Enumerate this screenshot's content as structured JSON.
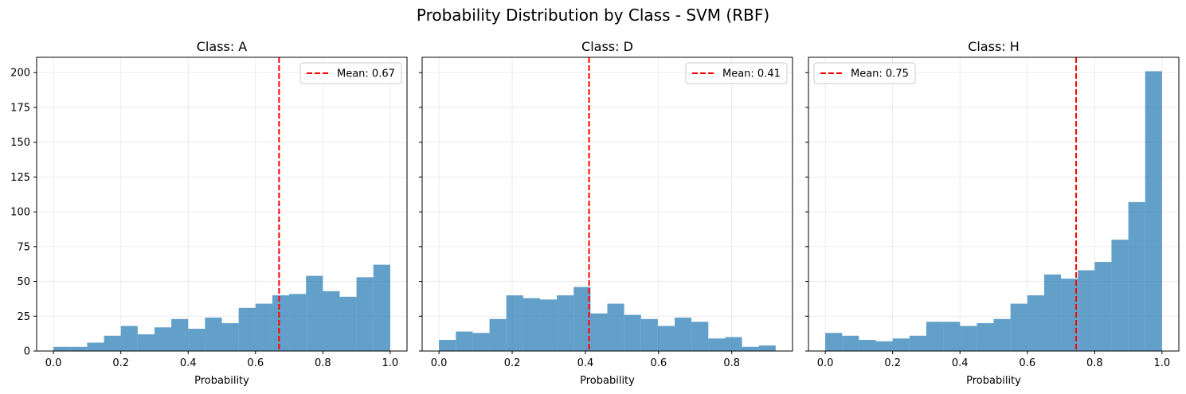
{
  "figure": {
    "title": "Probability Distribution by Class - SVM (RBF)"
  },
  "chart_data": [
    {
      "type": "bar",
      "title": "Class: A",
      "xlabel": "Probability",
      "ylabel": "",
      "xlim": [
        -0.05,
        1.05
      ],
      "ylim": [
        0,
        211
      ],
      "xticks": [
        0.0,
        0.2,
        0.4,
        0.6,
        0.8,
        1.0
      ],
      "xtick_labels": [
        "0.0",
        "0.2",
        "0.4",
        "0.6",
        "0.8",
        "1.0"
      ],
      "yticks": [
        0,
        25,
        50,
        75,
        100,
        125,
        150,
        175,
        200
      ],
      "ytick_labels": [
        "0",
        "25",
        "50",
        "75",
        "100",
        "125",
        "150",
        "175",
        "200"
      ],
      "grid": true,
      "legend_position": "top-right",
      "bin_edges": [
        0.0,
        0.05,
        0.1,
        0.15,
        0.2,
        0.25,
        0.3,
        0.35,
        0.4,
        0.45,
        0.5,
        0.55,
        0.6,
        0.65,
        0.7,
        0.75,
        0.8,
        0.85,
        0.9,
        0.95,
        1.0
      ],
      "counts": [
        3,
        3,
        6,
        11,
        18,
        12,
        17,
        23,
        16,
        24,
        20,
        31,
        34,
        40,
        41,
        54,
        43,
        39,
        53,
        62
      ],
      "mean": 0.67,
      "mean_label": "Mean: 0.67",
      "bar_color": "#1f77b4",
      "mean_color": "#ff0000"
    },
    {
      "type": "bar",
      "title": "Class: D",
      "xlabel": "Probability",
      "ylabel": "",
      "xlim": [
        -0.046,
        0.966
      ],
      "ylim": [
        0,
        211
      ],
      "xticks": [
        0.0,
        0.2,
        0.4,
        0.6,
        0.8
      ],
      "xtick_labels": [
        "0.0",
        "0.2",
        "0.4",
        "0.6",
        "0.8"
      ],
      "yticks": [
        0,
        25,
        50,
        75,
        100,
        125,
        150,
        175,
        200
      ],
      "ytick_labels": [],
      "grid": true,
      "legend_position": "top-right",
      "bin_edges": [
        0.0,
        0.046,
        0.092,
        0.138,
        0.184,
        0.23,
        0.276,
        0.322,
        0.368,
        0.414,
        0.46,
        0.506,
        0.552,
        0.598,
        0.644,
        0.69,
        0.736,
        0.782,
        0.828,
        0.874,
        0.92
      ],
      "counts": [
        8,
        14,
        13,
        23,
        40,
        38,
        37,
        40,
        46,
        27,
        34,
        26,
        23,
        18,
        24,
        21,
        9,
        10,
        3,
        4
      ],
      "mean": 0.41,
      "mean_label": "Mean: 0.41",
      "bar_color": "#1f77b4",
      "mean_color": "#ff0000"
    },
    {
      "type": "bar",
      "title": "Class: H",
      "xlabel": "Probability",
      "ylabel": "",
      "xlim": [
        -0.05,
        1.05
      ],
      "ylim": [
        0,
        211
      ],
      "xticks": [
        0.0,
        0.2,
        0.4,
        0.6,
        0.8,
        1.0
      ],
      "xtick_labels": [
        "0.0",
        "0.2",
        "0.4",
        "0.6",
        "0.8",
        "1.0"
      ],
      "yticks": [
        0,
        25,
        50,
        75,
        100,
        125,
        150,
        175,
        200
      ],
      "ytick_labels": [],
      "grid": true,
      "legend_position": "top-left",
      "bin_edges": [
        0.0,
        0.05,
        0.1,
        0.15,
        0.2,
        0.25,
        0.3,
        0.35,
        0.4,
        0.45,
        0.5,
        0.55,
        0.6,
        0.65,
        0.7,
        0.75,
        0.8,
        0.85,
        0.9,
        0.95,
        1.0
      ],
      "counts": [
        13,
        11,
        8,
        7,
        9,
        11,
        21,
        21,
        18,
        20,
        23,
        34,
        40,
        55,
        52,
        58,
        64,
        80,
        107,
        201
      ],
      "mean": 0.745,
      "mean_label": "Mean: 0.75",
      "bar_color": "#1f77b4",
      "mean_color": "#ff0000"
    }
  ]
}
